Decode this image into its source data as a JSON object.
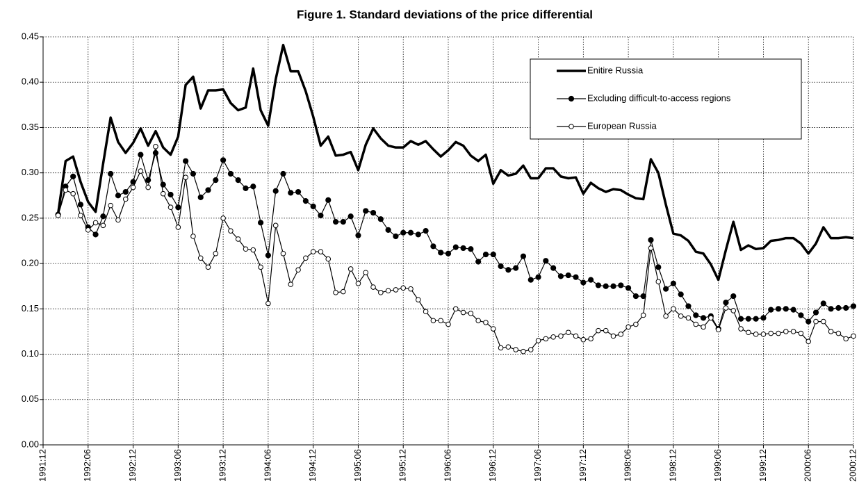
{
  "chart_data": {
    "type": "line",
    "title": "Figure 1. Standard deviations of the price differential",
    "categories": [
      "1991:12",
      null,
      null,
      null,
      null,
      null,
      "1992:06",
      null,
      null,
      null,
      null,
      null,
      "1992:12",
      null,
      null,
      null,
      null,
      null,
      "1993:06",
      null,
      null,
      null,
      null,
      null,
      "1993:12",
      null,
      null,
      null,
      null,
      null,
      "1994:06",
      null,
      null,
      null,
      null,
      null,
      "1994:12",
      null,
      null,
      null,
      null,
      null,
      "1995:06",
      null,
      null,
      null,
      null,
      null,
      "1995:12",
      null,
      null,
      null,
      null,
      null,
      "1996:06",
      null,
      null,
      null,
      null,
      null,
      "1996:12",
      null,
      null,
      null,
      null,
      null,
      "1997:06",
      null,
      null,
      null,
      null,
      null,
      "1997:12",
      null,
      null,
      null,
      null,
      null,
      "1998:06",
      null,
      null,
      null,
      null,
      null,
      "1998:12",
      null,
      null,
      null,
      null,
      null,
      "1999:06",
      null,
      null,
      null,
      null,
      null,
      "1999:12",
      null,
      null,
      null,
      null,
      null,
      "2000:06",
      null,
      null,
      null,
      null,
      null,
      "2000:12"
    ],
    "ylim": [
      0,
      0.45
    ],
    "yticks": [
      {
        "value": 0,
        "label": "0.00"
      },
      0.05,
      {
        "value": 0.1,
        "label": "0.10"
      },
      0.15,
      {
        "value": 0.2,
        "label": "0.20"
      },
      0.25,
      {
        "value": 0.3,
        "label": "0.30"
      },
      0.35,
      {
        "value": 0.4,
        "label": "0.40"
      },
      0.45
    ],
    "grid": true,
    "legend": "top-right",
    "series": [
      {
        "name": "Enitire Russia",
        "color": "#000000",
        "marker": "none",
        "line_width": 3.5,
        "values": [
          null,
          null,
          0.255,
          0.313,
          0.318,
          0.29,
          0.268,
          0.257,
          0.31,
          0.361,
          0.334,
          0.322,
          0.333,
          0.349,
          0.33,
          0.346,
          0.328,
          0.32,
          0.34,
          0.397,
          0.406,
          0.371,
          0.391,
          0.391,
          0.392,
          0.377,
          0.369,
          0.372,
          0.415,
          0.369,
          0.352,
          0.403,
          0.441,
          0.412,
          0.412,
          0.39,
          0.362,
          0.33,
          0.34,
          0.319,
          0.32,
          0.323,
          0.303,
          0.331,
          0.349,
          0.338,
          0.33,
          0.328,
          0.328,
          0.335,
          0.331,
          0.335,
          0.326,
          0.318,
          0.325,
          0.334,
          0.33,
          0.319,
          0.313,
          0.32,
          0.288,
          0.303,
          0.297,
          0.299,
          0.308,
          0.294,
          0.294,
          0.305,
          0.305,
          0.296,
          0.294,
          0.295,
          0.277,
          0.289,
          0.283,
          0.279,
          0.282,
          0.281,
          0.276,
          0.272,
          0.271,
          0.315,
          0.3,
          0.265,
          0.233,
          0.231,
          0.225,
          0.213,
          0.211,
          0.199,
          0.182,
          0.215,
          0.246,
          0.215,
          0.22,
          0.216,
          0.217,
          0.225,
          0.226,
          0.228,
          0.228,
          0.222,
          0.211,
          0.222,
          0.24,
          0.228,
          0.228,
          0.229,
          0.228
        ]
      },
      {
        "name": "Excluding difficult-to-access regions",
        "color": "#000000",
        "marker": "filled",
        "line_width": 1.2,
        "values": [
          null,
          null,
          0.254,
          0.285,
          0.296,
          0.265,
          0.24,
          0.232,
          0.252,
          0.299,
          0.275,
          0.279,
          0.29,
          0.32,
          0.292,
          0.322,
          0.287,
          0.276,
          0.262,
          0.313,
          0.299,
          0.273,
          0.281,
          0.292,
          0.314,
          0.299,
          0.292,
          0.283,
          0.285,
          0.245,
          0.209,
          0.28,
          0.299,
          0.278,
          0.279,
          0.269,
          0.263,
          0.253,
          0.27,
          0.246,
          0.246,
          0.252,
          0.231,
          0.258,
          0.256,
          0.249,
          0.237,
          0.23,
          0.234,
          0.234,
          0.232,
          0.236,
          0.219,
          0.212,
          0.211,
          0.218,
          0.217,
          0.216,
          0.202,
          0.21,
          0.21,
          0.197,
          0.193,
          0.195,
          0.208,
          0.182,
          0.185,
          0.203,
          0.195,
          0.186,
          0.187,
          0.185,
          0.179,
          0.182,
          0.176,
          0.175,
          0.175,
          0.176,
          0.173,
          0.164,
          0.164,
          0.226,
          0.196,
          0.172,
          0.178,
          0.166,
          0.153,
          0.143,
          0.14,
          0.142,
          0.128,
          0.157,
          0.164,
          0.139,
          0.139,
          0.139,
          0.14,
          0.149,
          0.15,
          0.15,
          0.149,
          0.143,
          0.136,
          0.146,
          0.156,
          0.15,
          0.151,
          0.151,
          0.153
        ]
      },
      {
        "name": "European Russia",
        "color": "#000000",
        "marker": "open",
        "line_width": 1.2,
        "values": [
          null,
          null,
          0.253,
          0.281,
          0.277,
          0.253,
          0.237,
          0.245,
          0.242,
          0.264,
          0.248,
          0.271,
          0.284,
          0.302,
          0.284,
          0.329,
          0.277,
          0.262,
          0.24,
          0.295,
          0.23,
          0.206,
          0.196,
          0.211,
          0.25,
          0.236,
          0.227,
          0.216,
          0.215,
          0.196,
          0.156,
          0.242,
          0.211,
          0.177,
          0.193,
          0.206,
          0.213,
          0.213,
          0.205,
          0.168,
          0.169,
          0.194,
          0.178,
          0.19,
          0.174,
          0.168,
          0.17,
          0.171,
          0.173,
          0.172,
          0.16,
          0.147,
          0.137,
          0.137,
          0.133,
          0.15,
          0.146,
          0.145,
          0.137,
          0.135,
          0.128,
          0.107,
          0.108,
          0.105,
          0.103,
          0.105,
          0.115,
          0.117,
          0.119,
          0.12,
          0.124,
          0.12,
          0.116,
          0.117,
          0.126,
          0.126,
          0.12,
          0.122,
          0.13,
          0.133,
          0.143,
          0.217,
          0.18,
          0.142,
          0.15,
          0.142,
          0.14,
          0.133,
          0.13,
          0.14,
          0.127,
          0.151,
          0.148,
          0.128,
          0.124,
          0.122,
          0.122,
          0.123,
          0.123,
          0.125,
          0.125,
          0.123,
          0.114,
          0.136,
          0.136,
          0.125,
          0.123,
          0.117,
          0.12
        ]
      }
    ]
  }
}
